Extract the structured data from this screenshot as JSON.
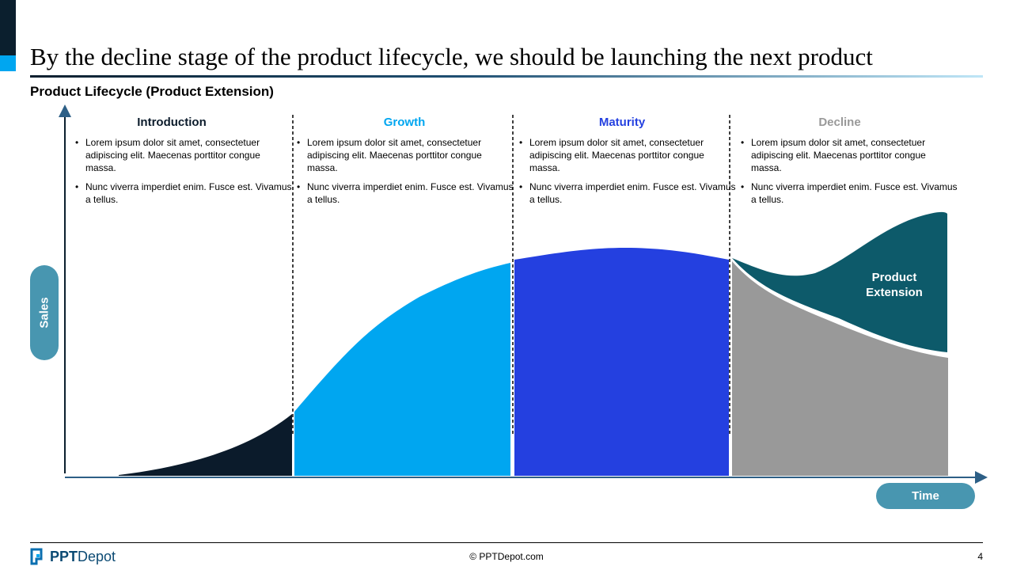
{
  "slide": {
    "title": "By the decline stage of the product lifecycle, we should be launching the next product",
    "subtitle": "Product Lifecycle (Product Extension)"
  },
  "axes": {
    "y_label": "Sales",
    "x_label": "Time"
  },
  "stages": [
    {
      "title": "Introduction",
      "color": "#0b1b2b",
      "bullets": [
        "Lorem ipsum dolor sit amet, consectetuer adipiscing elit. Maecenas porttitor congue massa.",
        "Nunc viverra imperdiet enim. Fusce est. Vivamus a tellus."
      ]
    },
    {
      "title": "Growth",
      "color": "#00a6f0",
      "bullets": [
        "Lorem ipsum dolor sit amet, consectetuer adipiscing elit. Maecenas porttitor congue massa.",
        "Nunc viverra imperdiet enim. Fusce est. Vivamus a tellus."
      ]
    },
    {
      "title": "Maturity",
      "color": "#2440e0",
      "bullets": [
        "Lorem ipsum dolor sit amet, consectetuer adipiscing elit. Maecenas porttitor congue massa.",
        "Nunc viverra imperdiet enim. Fusce est. Vivamus a tellus."
      ]
    },
    {
      "title": "Decline",
      "color": "#999999",
      "bullets": [
        "Lorem ipsum dolor sit amet, consectetuer adipiscing elit. Maecenas porttitor congue massa.",
        "Nunc viverra imperdiet enim. Fusce est. Vivamus a tellus."
      ]
    }
  ],
  "extension": {
    "label": "Product Extension",
    "color": "#0d5a6a"
  },
  "footer": {
    "logo_bold": "PPT",
    "logo_regular": "Depot",
    "copyright": "© PPTDepot.com",
    "page_number": "4"
  }
}
